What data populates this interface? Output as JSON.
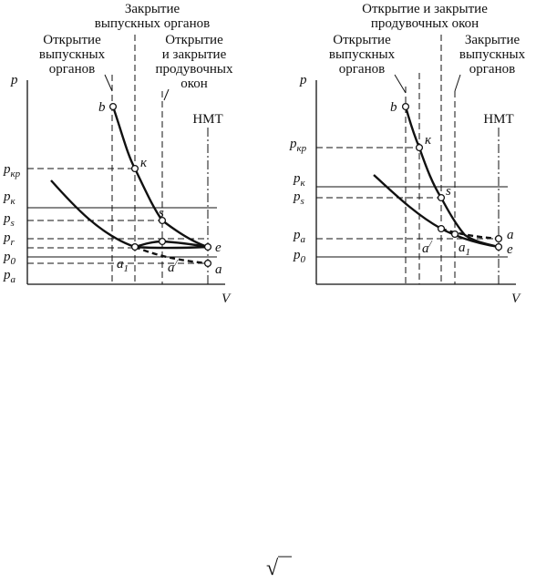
{
  "left": {
    "top_label": [
      "Закрытие",
      "выпускных органов"
    ],
    "open_exhaust_label": [
      "Открытие",
      "выпускных",
      "органов"
    ],
    "scavenge_label": [
      "Открытие",
      "и закрытие",
      "продувочных",
      "окон"
    ],
    "axis_p": "p",
    "axis_v": "V",
    "nmt": "НМТ",
    "pressure_labels": [
      {
        "base": "p",
        "sub": "кр"
      },
      {
        "base": "p",
        "sub": "к"
      },
      {
        "base": "p",
        "sub": "s"
      },
      {
        "base": "p",
        "sub": "r"
      },
      {
        "base": "p",
        "sub": "0"
      },
      {
        "base": "p",
        "sub": "a"
      }
    ],
    "point_labels": [
      "b",
      "к",
      "s",
      "e",
      "a",
      "a",
      "a"
    ],
    "point_a1_sub": "1",
    "point_a_prime_sup": "/"
  },
  "right": {
    "top_label": [
      "Открытие и закрытие",
      "продувочных окон"
    ],
    "open_exhaust_label": [
      "Открытие",
      "выпускных",
      "органов"
    ],
    "close_exhaust_label": [
      "Закрытие",
      "выпускных",
      "органов"
    ],
    "axis_p": "p",
    "axis_v": "V",
    "nmt": "НМТ",
    "pressure_labels": [
      {
        "base": "p",
        "sub": "кр"
      },
      {
        "base": "p",
        "sub": "к"
      },
      {
        "base": "p",
        "sub": "s"
      },
      {
        "base": "p",
        "sub": "a"
      },
      {
        "base": "p",
        "sub": "0"
      }
    ],
    "point_labels": [
      "b",
      "к",
      "s",
      "a",
      "a",
      "e"
    ],
    "point_a1_sub": "1",
    "point_a_prime_sup": "/"
  },
  "footer_symbol": "√"
}
